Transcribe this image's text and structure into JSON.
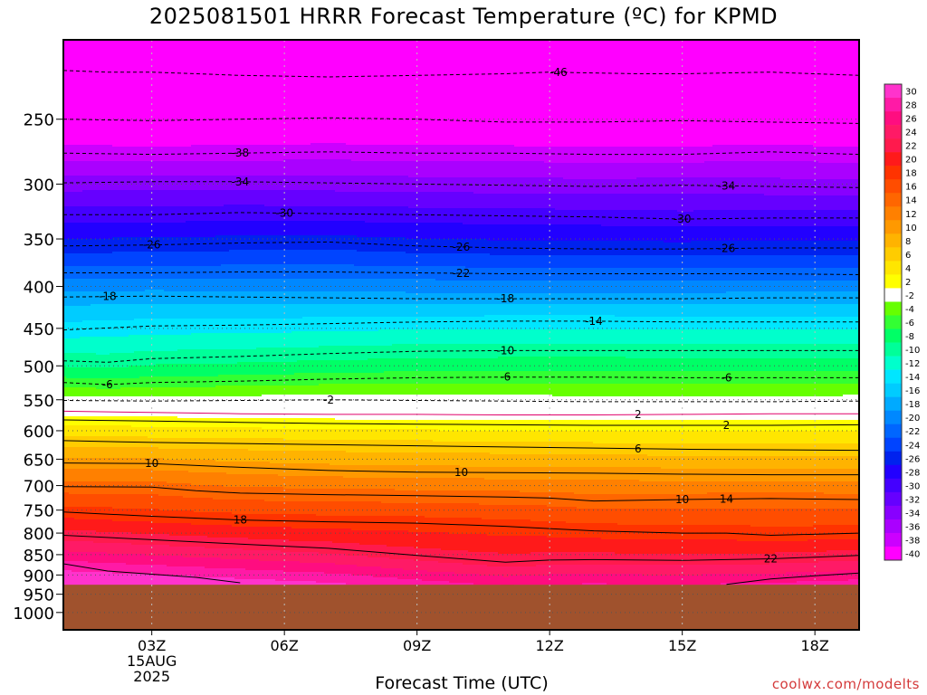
{
  "title": "2025081501 HRRR Forecast Temperature (ºC) for KPMD",
  "xaxis_title": "Forecast Time (UTC)",
  "credit": "coolwx.com/modelts",
  "chart_data": {
    "type": "heatmap",
    "title": "2025081501 HRRR Forecast Temperature (ºC) for KPMD",
    "xlabel": "Forecast Time (UTC)",
    "ylabel": "",
    "x_range": [
      1,
      19
    ],
    "x_unit": "hours UTC (2025-08-15)",
    "x_ticks": [
      {
        "x": 3,
        "label": "03Z"
      },
      {
        "x": 6,
        "label": "06Z"
      },
      {
        "x": 9,
        "label": "09Z"
      },
      {
        "x": 12,
        "label": "12Z"
      },
      {
        "x": 15,
        "label": "15Z"
      },
      {
        "x": 18,
        "label": "18Z"
      }
    ],
    "x_date_lines": [
      "15AUG",
      "2025"
    ],
    "y_axis": "pressure (hPa), log scale, inverted",
    "y_range": [
      1050,
      200
    ],
    "y_ticks": [
      250,
      300,
      350,
      400,
      450,
      500,
      550,
      600,
      650,
      700,
      750,
      800,
      850,
      900,
      950,
      1000
    ],
    "grid": true,
    "terrain": {
      "below_pressure_hpa": 925,
      "color": "#a0522d"
    },
    "colorbar": {
      "placement": "right",
      "levels": [
        30,
        28,
        26,
        24,
        22,
        20,
        18,
        16,
        14,
        12,
        10,
        8,
        6,
        4,
        2,
        -2,
        -4,
        -6,
        -8,
        -10,
        -12,
        -14,
        -16,
        -18,
        -20,
        -22,
        -24,
        -26,
        -28,
        -30,
        -32,
        -34,
        -36,
        -38,
        -40
      ],
      "colors": [
        "#ff33cc",
        "#ff1aa6",
        "#ff0d80",
        "#ff1a66",
        "#ff1a4d",
        "#ff1a1a",
        "#ff3300",
        "#ff4d00",
        "#ff6600",
        "#ff8000",
        "#ff9900",
        "#ffb300",
        "#ffcc00",
        "#ffe600",
        "#ffff00",
        "#ffffff",
        "#66ff00",
        "#33ff33",
        "#00ff66",
        "#00ff99",
        "#00ffcc",
        "#00e6ff",
        "#00ccff",
        "#00aaff",
        "#0088ff",
        "#0066ff",
        "#0044ff",
        "#0022ee",
        "#2200ff",
        "#4400ff",
        "#6600ff",
        "#8800ff",
        "#aa00ff",
        "#cc00ff",
        "#ff00ff"
      ]
    },
    "isotherms": [
      {
        "label": "46",
        "values": [
          [
            1,
            218
          ],
          [
            2,
            219
          ],
          [
            3,
            219
          ],
          [
            5,
            221
          ],
          [
            7,
            222
          ],
          [
            9,
            221
          ],
          [
            11,
            220
          ],
          [
            12,
            219
          ],
          [
            14,
            220
          ],
          [
            15,
            220
          ],
          [
            17,
            219
          ],
          [
            19,
            221
          ]
        ],
        "label_at": [
          12.2,
          221
        ]
      },
      {
        "label": "42",
        "values": [
          [
            1,
            250
          ],
          [
            3,
            251
          ],
          [
            5,
            250
          ],
          [
            7,
            249
          ],
          [
            9,
            250
          ],
          [
            11,
            252
          ],
          [
            13,
            252
          ],
          [
            15,
            251
          ],
          [
            17,
            252
          ],
          [
            19,
            253
          ]
        ]
      },
      {
        "label": "38",
        "values": [
          [
            1,
            275
          ],
          [
            3,
            276
          ],
          [
            5,
            275
          ],
          [
            7,
            274
          ],
          [
            9,
            275
          ],
          [
            11,
            275
          ],
          [
            13,
            276
          ],
          [
            15,
            276
          ],
          [
            17,
            274
          ],
          [
            19,
            276
          ]
        ],
        "label_at": [
          5.0,
          275
        ]
      },
      {
        "label": "34",
        "values": [
          [
            1,
            299
          ],
          [
            3,
            298
          ],
          [
            5,
            298
          ],
          [
            7,
            299
          ],
          [
            9,
            300
          ],
          [
            11,
            301
          ],
          [
            13,
            302
          ],
          [
            15,
            301
          ],
          [
            17,
            302
          ],
          [
            19,
            303
          ]
        ],
        "label_at": [
          5.0,
          299
        ]
      },
      {
        "label": "30",
        "values": [
          [
            1,
            327
          ],
          [
            3,
            327
          ],
          [
            5,
            325
          ],
          [
            7,
            326
          ],
          [
            9,
            327
          ],
          [
            11,
            328
          ],
          [
            13,
            329
          ],
          [
            15,
            331
          ],
          [
            17,
            330
          ],
          [
            19,
            330
          ]
        ],
        "label_at": [
          6.0,
          325
        ]
      },
      {
        "label": "26",
        "values": [
          [
            1,
            357
          ],
          [
            3,
            356
          ],
          [
            5,
            354
          ],
          [
            7,
            353
          ],
          [
            9,
            357
          ],
          [
            11,
            359
          ],
          [
            13,
            360
          ],
          [
            15,
            360
          ],
          [
            17,
            359
          ],
          [
            19,
            359
          ]
        ],
        "label_at": [
          3.0,
          356
        ]
      },
      {
        "label": "22",
        "values": [
          [
            1,
            385
          ],
          [
            3,
            385
          ],
          [
            5,
            384
          ],
          [
            7,
            384
          ],
          [
            9,
            385
          ],
          [
            11,
            386
          ],
          [
            13,
            386
          ],
          [
            15,
            386
          ],
          [
            17,
            386
          ],
          [
            19,
            387
          ]
        ],
        "label_at": [
          10.0,
          385
        ]
      },
      {
        "label": "18",
        "values": [
          [
            1,
            412
          ],
          [
            3,
            411
          ],
          [
            5,
            412
          ],
          [
            7,
            413
          ],
          [
            9,
            414
          ],
          [
            11,
            414
          ],
          [
            13,
            414
          ],
          [
            15,
            414
          ],
          [
            17,
            413
          ],
          [
            19,
            413
          ]
        ],
        "label_at": [
          2.0,
          412
        ]
      },
      {
        "label": "14",
        "values": [
          [
            1,
            452
          ],
          [
            3,
            447
          ],
          [
            5,
            446
          ],
          [
            7,
            444
          ],
          [
            9,
            442
          ],
          [
            11,
            441
          ],
          [
            13,
            441
          ],
          [
            15,
            442
          ],
          [
            17,
            442
          ],
          [
            19,
            442
          ]
        ],
        "label_at": [
          13.0,
          441
        ]
      },
      {
        "label": "10",
        "values": [
          [
            1,
            493
          ],
          [
            2,
            495
          ],
          [
            3,
            490
          ],
          [
            5,
            487
          ],
          [
            7,
            483
          ],
          [
            9,
            480
          ],
          [
            11,
            479
          ],
          [
            13,
            479
          ],
          [
            15,
            479
          ],
          [
            17,
            479
          ],
          [
            19,
            479
          ]
        ],
        "label_at": [
          11.0,
          479
        ]
      },
      {
        "label": "6",
        "values": [
          [
            1,
            524
          ],
          [
            2,
            527
          ],
          [
            3,
            524
          ],
          [
            5,
            522
          ],
          [
            7,
            519
          ],
          [
            9,
            517
          ],
          [
            11,
            516
          ],
          [
            13,
            516
          ],
          [
            15,
            517
          ],
          [
            17,
            517
          ],
          [
            19,
            517
          ]
        ],
        "label_at": [
          2.0,
          527
        ]
      },
      {
        "label": "2",
        "values": [
          [
            1,
            551
          ],
          [
            3,
            552
          ],
          [
            5,
            551
          ],
          [
            7,
            550
          ],
          [
            9,
            551
          ],
          [
            11,
            552
          ],
          [
            13,
            553
          ],
          [
            15,
            553
          ],
          [
            17,
            553
          ],
          [
            19,
            552
          ]
        ],
        "label_at": [
          7.0,
          550
        ]
      },
      {
        "label": "-2",
        "values": [
          [
            1,
            568
          ],
          [
            3,
            570
          ],
          [
            5,
            572
          ],
          [
            7,
            573
          ],
          [
            9,
            573
          ],
          [
            11,
            574
          ],
          [
            13,
            574
          ],
          [
            15,
            573
          ],
          [
            17,
            572
          ],
          [
            19,
            572
          ]
        ],
        "label_at": [
          14.0,
          555
        ]
      },
      {
        "label": "2",
        "values": [
          [
            1,
            582
          ],
          [
            3,
            584
          ],
          [
            5,
            586
          ],
          [
            7,
            588
          ],
          [
            9,
            589
          ],
          [
            11,
            590
          ],
          [
            13,
            591
          ],
          [
            15,
            591
          ],
          [
            17,
            591
          ],
          [
            19,
            590
          ]
        ],
        "label_at": [
          16.0,
          590
        ]
      },
      {
        "label": "6",
        "values": [
          [
            1,
            617
          ],
          [
            3,
            620
          ],
          [
            5,
            622
          ],
          [
            7,
            624
          ],
          [
            9,
            626
          ],
          [
            11,
            628
          ],
          [
            13,
            630
          ],
          [
            15,
            632
          ],
          [
            17,
            633
          ],
          [
            19,
            634
          ]
        ],
        "label_at": [
          14.0,
          628
        ]
      },
      {
        "label": "10",
        "values": [
          [
            1,
            657
          ],
          [
            3,
            658
          ],
          [
            5,
            665
          ],
          [
            7,
            671
          ],
          [
            9,
            674
          ],
          [
            11,
            675
          ],
          [
            13,
            676
          ],
          [
            15,
            678
          ],
          [
            17,
            679
          ],
          [
            19,
            679
          ]
        ],
        "label_at": [
          3.0,
          658
        ]
      },
      {
        "label": "14",
        "values": [
          [
            1,
            702
          ],
          [
            3,
            703
          ],
          [
            4,
            710
          ],
          [
            5,
            715
          ],
          [
            7,
            718
          ],
          [
            9,
            720
          ],
          [
            11,
            723
          ],
          [
            12,
            725
          ],
          [
            13,
            731
          ],
          [
            15,
            728
          ],
          [
            17,
            726
          ],
          [
            19,
            728
          ]
        ],
        "label_at": [
          16.0,
          728
        ]
      },
      {
        "label": "18",
        "values": [
          [
            1,
            754
          ],
          [
            3,
            763
          ],
          [
            5,
            771
          ],
          [
            7,
            775
          ],
          [
            9,
            778
          ],
          [
            11,
            785
          ],
          [
            13,
            795
          ],
          [
            15,
            800
          ],
          [
            16,
            800
          ],
          [
            17,
            805
          ],
          [
            19,
            800
          ]
        ],
        "label_at": [
          5.0,
          770
        ]
      },
      {
        "label": "22",
        "values": [
          [
            1,
            805
          ],
          [
            3,
            815
          ],
          [
            5,
            825
          ],
          [
            7,
            835
          ],
          [
            9,
            852
          ],
          [
            11,
            868
          ],
          [
            12,
            863
          ],
          [
            13,
            862
          ],
          [
            15,
            864
          ],
          [
            17,
            860
          ],
          [
            19,
            852
          ]
        ],
        "label_at": [
          17.0,
          863
        ]
      },
      {
        "label": "",
        "values": [
          [
            1,
            872
          ],
          [
            2,
            890
          ],
          [
            3,
            898
          ],
          [
            4,
            906
          ],
          [
            5,
            920
          ]
        ]
      },
      {
        "label": "",
        "values": [
          [
            16,
            924
          ],
          [
            17,
            910
          ],
          [
            18,
            902
          ],
          [
            19,
            895
          ]
        ]
      }
    ],
    "isotherm_labels": [
      "46",
      "38",
      "34",
      "34",
      "30",
      "30",
      "26",
      "26",
      "26",
      "22",
      "18",
      "18",
      "14",
      "10",
      "6",
      "6",
      "6",
      "2",
      "2",
      "2",
      "6",
      "10",
      "10",
      "10",
      "14",
      "18",
      "22"
    ]
  }
}
